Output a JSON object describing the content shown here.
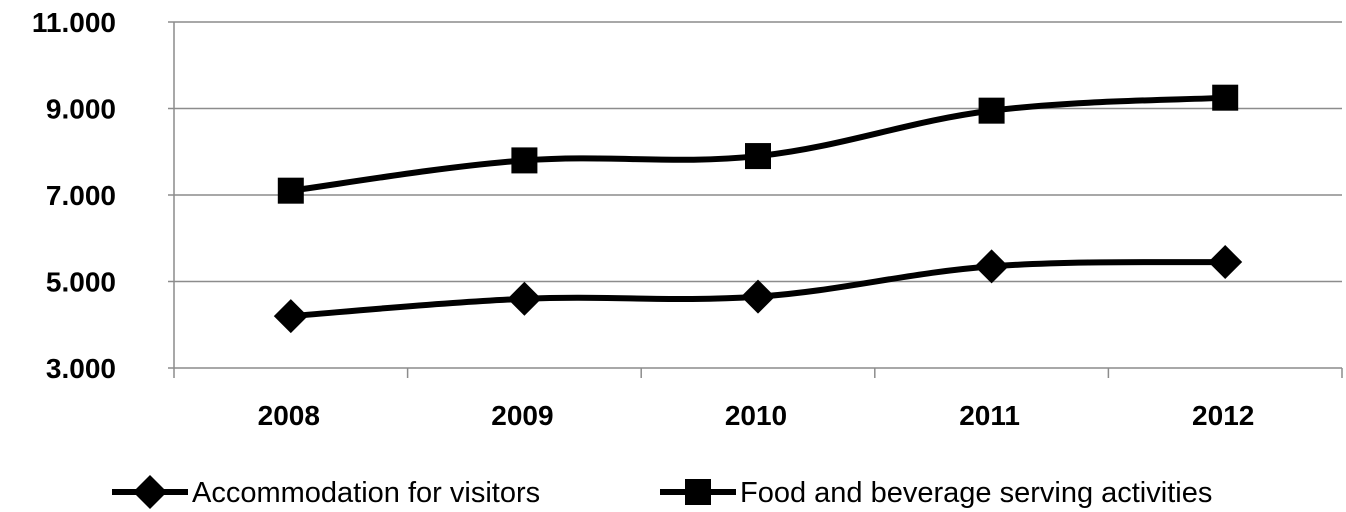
{
  "chart_data": {
    "type": "line",
    "categories": [
      "2008",
      "2009",
      "2010",
      "2011",
      "2012"
    ],
    "y_tick_labels": [
      "3.000",
      "5.000",
      "7.000",
      "9.000",
      "11.000"
    ],
    "y_ticks": [
      3000,
      5000,
      7000,
      9000,
      11000
    ],
    "ylim": [
      3000,
      11000
    ],
    "grid": true,
    "legend_position": "bottom",
    "series": [
      {
        "name": "Accommodation for visitors",
        "marker": "diamond",
        "values": [
          4200,
          4600,
          4650,
          5350,
          5450
        ]
      },
      {
        "name": "Food and beverage serving activities",
        "marker": "square",
        "values": [
          7100,
          7800,
          7900,
          8950,
          9250
        ]
      }
    ],
    "colors": {
      "line": "#000000",
      "grid": "#8c8c8c"
    }
  }
}
